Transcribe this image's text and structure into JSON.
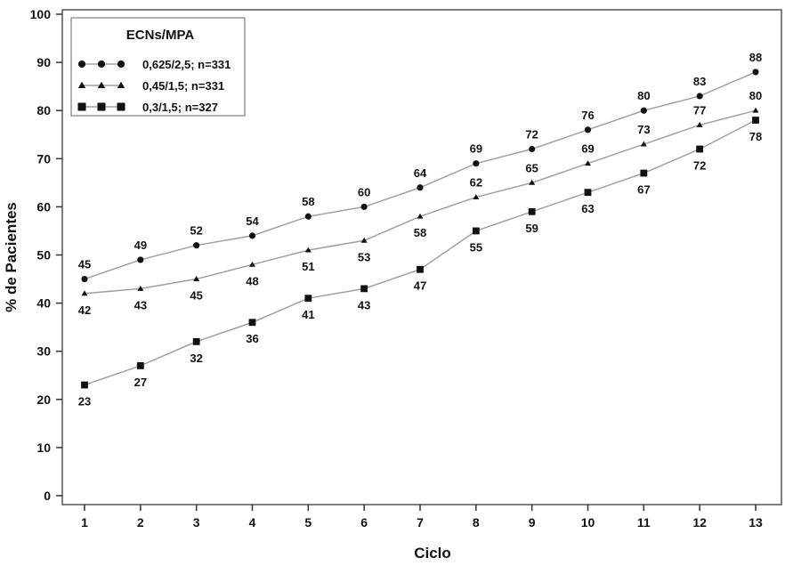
{
  "chart_data": {
    "type": "line",
    "xlabel": "Ciclo",
    "ylabel": "% de Pacientes",
    "x": [
      1,
      2,
      3,
      4,
      5,
      6,
      7,
      8,
      9,
      10,
      11,
      12,
      13
    ],
    "x_tick_labels": [
      "1",
      "2",
      "3",
      "4",
      "5",
      "6",
      "7",
      "8",
      "9",
      "10",
      "11",
      "12",
      "13"
    ],
    "ylim": [
      0,
      100
    ],
    "y_ticks": [
      0,
      10,
      20,
      30,
      40,
      50,
      60,
      70,
      80,
      90,
      100
    ],
    "y_tick_labels": [
      "0",
      "10",
      "20",
      "30",
      "40",
      "50",
      "60",
      "70",
      "80",
      "90",
      "100"
    ],
    "grid": false,
    "legend": {
      "title": "ECNs/MPA",
      "placement": "top-left"
    },
    "series": [
      {
        "name": "0,625/2,5; n=331",
        "marker": "circle",
        "values": [
          45,
          49,
          52,
          54,
          58,
          60,
          64,
          69,
          72,
          76,
          80,
          83,
          88
        ],
        "labels": [
          "45",
          "49",
          "52",
          "54",
          "58",
          "60",
          "64",
          "69",
          "72",
          "76",
          "80",
          "83",
          "88"
        ],
        "label_position": "above"
      },
      {
        "name": "0,45/1,5; n=331",
        "marker": "triangle",
        "values": [
          42,
          43,
          45,
          48,
          51,
          53,
          58,
          62,
          65,
          69,
          73,
          77,
          80
        ],
        "labels": [
          "42",
          "43",
          "45",
          "48",
          "51",
          "53",
          "58",
          "62",
          "65",
          "69",
          "73",
          "77",
          "80"
        ],
        "label_position": "mixed"
      },
      {
        "name": "0,3/1,5; n=327",
        "marker": "square",
        "values": [
          23,
          27,
          32,
          36,
          41,
          43,
          47,
          55,
          59,
          63,
          67,
          72,
          78
        ],
        "labels": [
          "23",
          "27",
          "32",
          "36",
          "41",
          "43",
          "47",
          "55",
          "59",
          "63",
          "67",
          "72",
          "78"
        ],
        "label_position": "below"
      }
    ],
    "colors": {
      "line": "#a0a0a0",
      "marker": "#111111",
      "axis": "#333333",
      "text": "#111111"
    }
  }
}
